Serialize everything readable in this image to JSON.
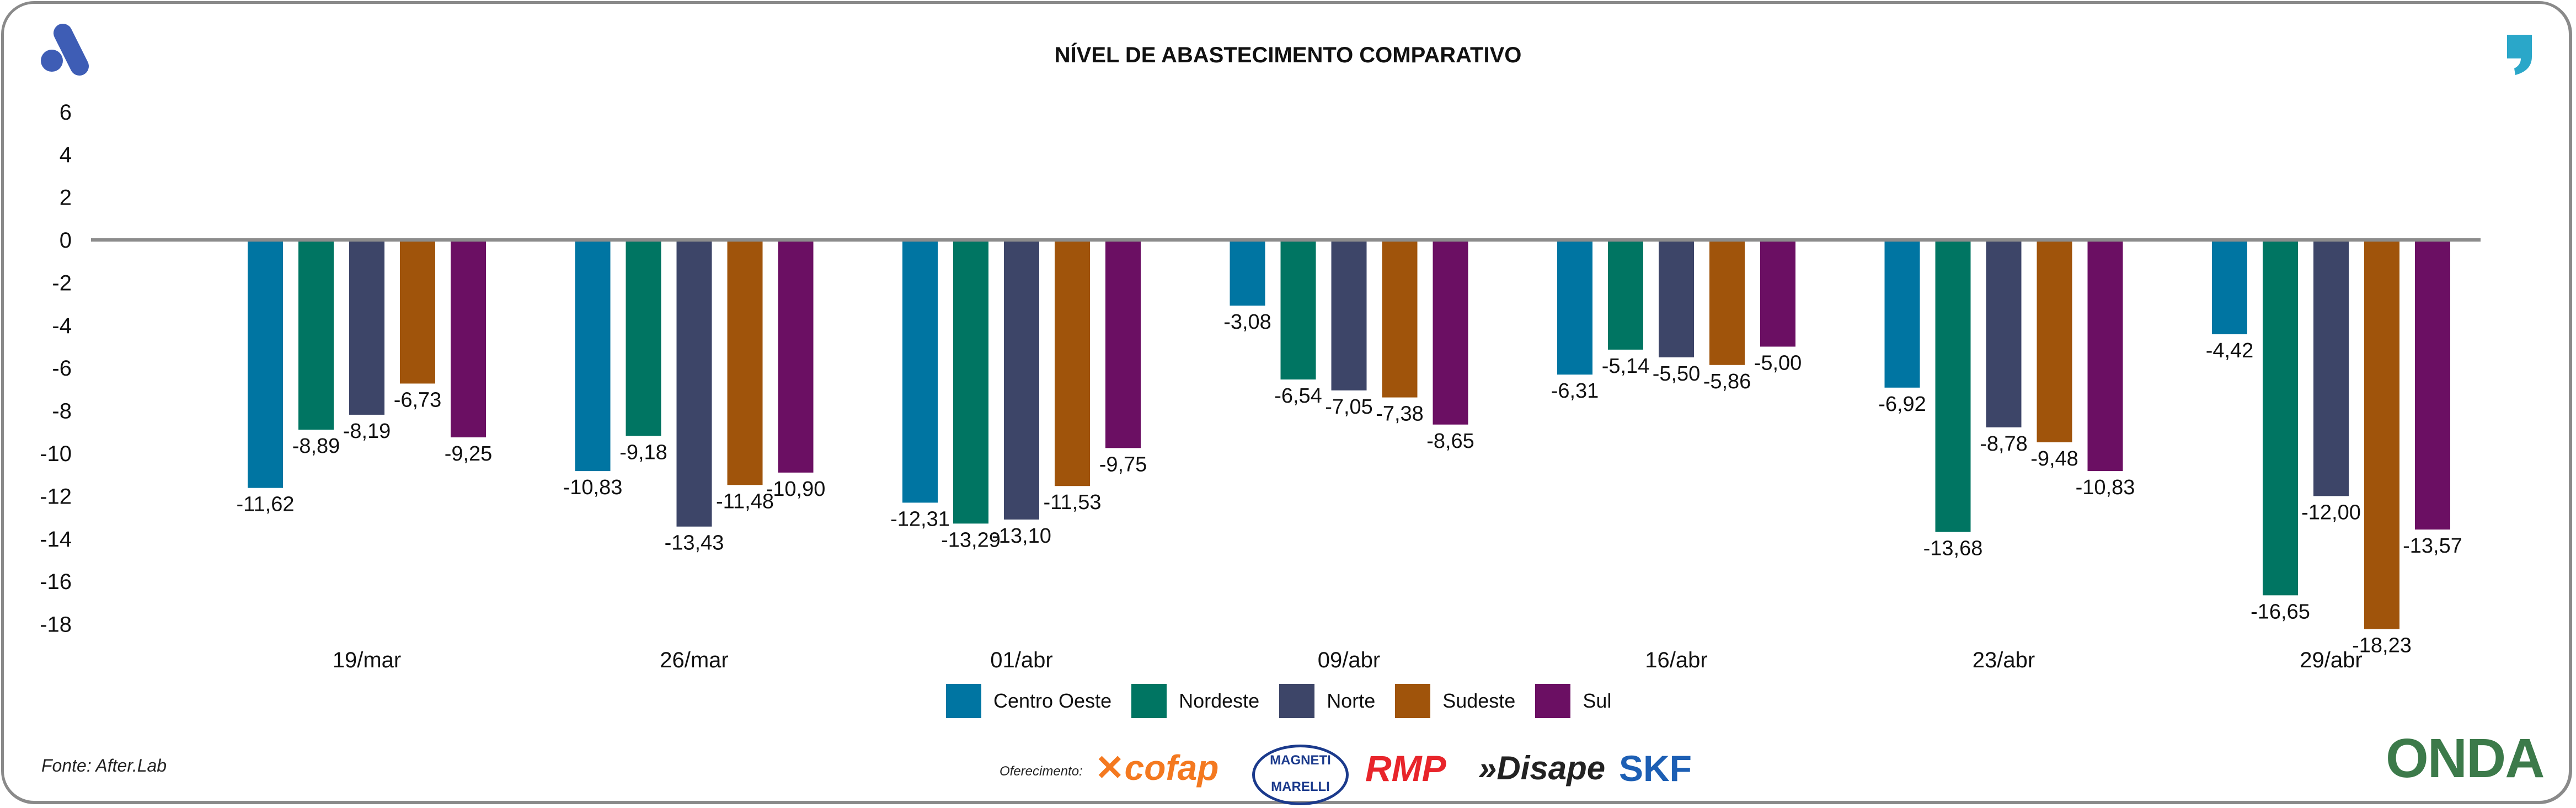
{
  "title": "NÍVEL DE ABASTECIMENTO COMPARATIVO",
  "source": "Fonte: After.Lab",
  "sponsor_label": "Oferecimento:",
  "sponsors": [
    "cofap",
    "MAGNETI MARELLI",
    "RMP",
    "Disape",
    "SKF"
  ],
  "partner_logo": "ONDA",
  "chart_data": {
    "type": "bar",
    "title": "NÍVEL DE ABASTECIMENTO COMPARATIVO",
    "categories": [
      "19/mar",
      "26/mar",
      "01/abr",
      "09/abr",
      "16/abr",
      "23/abr",
      "29/abr"
    ],
    "ylim": [
      -18,
      6
    ],
    "yticks": [
      6,
      4,
      2,
      0,
      -2,
      -4,
      -6,
      -8,
      -10,
      -12,
      -14,
      -16,
      -18
    ],
    "grid": false,
    "legend": "bottom",
    "series": [
      {
        "name": "Centro Oeste",
        "color": "#0075A2",
        "values": [
          -11.62,
          -10.83,
          -12.31,
          -3.08,
          -6.31,
          -6.92,
          -4.42
        ],
        "labels": [
          "-11,62",
          "-10,83",
          "-12,31",
          "-3,08",
          "-6,31",
          "-6,92",
          "-4,42"
        ]
      },
      {
        "name": "Nordeste",
        "color": "#007562",
        "values": [
          -8.89,
          -9.18,
          -13.29,
          -6.54,
          -5.14,
          -13.68,
          -16.65
        ],
        "labels": [
          "-8,89",
          "-9,18",
          "-13,29",
          "-6,54",
          "-5,14",
          "-13,68",
          "-16,65"
        ]
      },
      {
        "name": "Norte",
        "color": "#3D4568",
        "values": [
          -8.19,
          -13.43,
          -13.1,
          -7.05,
          -5.5,
          -8.78,
          -12.0
        ],
        "labels": [
          "-8,19",
          "-13,43",
          "-13,10",
          "-7,05",
          "-5,50",
          "-8,78",
          "-12,00"
        ]
      },
      {
        "name": "Sudeste",
        "color": "#A0540B",
        "values": [
          -6.73,
          -11.48,
          -11.53,
          -7.38,
          -5.86,
          -9.48,
          -18.23
        ],
        "labels": [
          "-6,73",
          "-11,48",
          "-11,53",
          "-7,38",
          "-5,86",
          "-9,48",
          "-18,23"
        ]
      },
      {
        "name": "Sul",
        "color": "#6B0F63",
        "values": [
          -9.25,
          -10.9,
          -9.75,
          -8.65,
          -5.0,
          -10.83,
          -13.57
        ],
        "labels": [
          "-9,25",
          "-10,90",
          "-9,75",
          "-8,65",
          "-5,00",
          "-10,83",
          "-13,57"
        ]
      }
    ]
  }
}
